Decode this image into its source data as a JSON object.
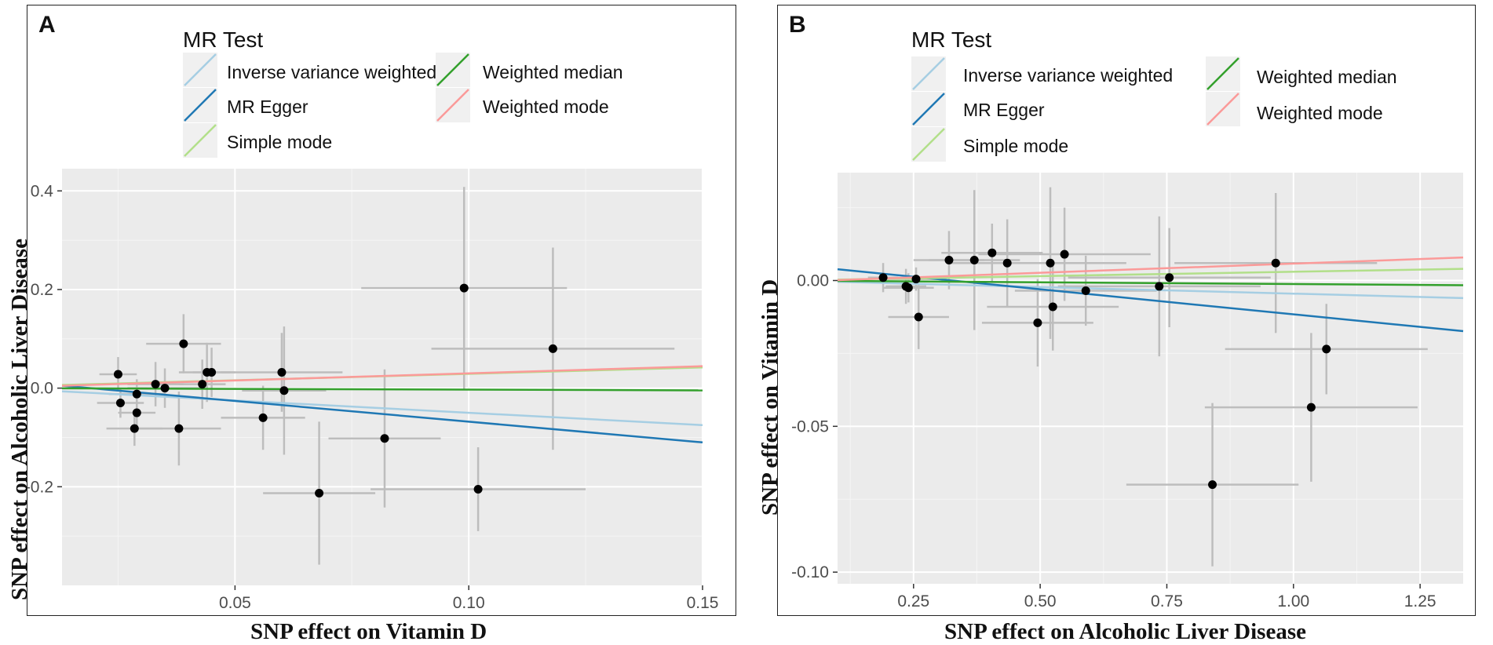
{
  "chart_data": [
    {
      "panel": "A",
      "type": "scatter",
      "xlabel": "SNP effect on Vitamin D",
      "ylabel": "SNP effect on Alcoholic Liver Disease",
      "xlim": [
        0.013,
        0.15
      ],
      "ylim": [
        -0.4,
        0.445
      ],
      "xticks": [
        0.05,
        0.1,
        0.15
      ],
      "xtick_labels": [
        "0.05",
        "0.10",
        "0.15"
      ],
      "yticks": [
        -0.2,
        0.0,
        0.2,
        0.4
      ],
      "ytick_labels": [
        "-0.2",
        "0.0",
        "0.2",
        "0.4"
      ],
      "legend": {
        "title": "MR Test",
        "entries": [
          {
            "label": "Inverse variance weighted",
            "color": "#a6cee3"
          },
          {
            "label": "MR Egger",
            "color": "#1f78b4"
          },
          {
            "label": "Simple mode",
            "color": "#b2df8a"
          },
          {
            "label": "Weighted median",
            "color": "#33a02c"
          },
          {
            "label": "Weighted mode",
            "color": "#fb9a99"
          }
        ]
      },
      "lines": [
        {
          "name": "Inverse variance weighted",
          "slope": -0.5,
          "intercept": 0,
          "color": "#a6cee3"
        },
        {
          "name": "MR Egger",
          "slope": -0.84,
          "intercept": 0.016,
          "color": "#1f78b4"
        },
        {
          "name": "Simple mode",
          "slope": 0.26,
          "intercept": 0.003,
          "color": "#b2df8a"
        },
        {
          "name": "Weighted median",
          "slope": -0.03,
          "intercept": 0,
          "color": "#33a02c"
        },
        {
          "name": "Weighted mode",
          "slope": 0.29,
          "intercept": 0.001,
          "color": "#fb9a99"
        }
      ],
      "points": [
        {
          "x": 0.025,
          "y": 0.028,
          "xerr": 0.004,
          "yerr": 0.035
        },
        {
          "x": 0.0255,
          "y": -0.03,
          "xerr": 0.005,
          "yerr": 0.03
        },
        {
          "x": 0.029,
          "y": -0.012,
          "xerr": 0.006,
          "yerr": 0.03
        },
        {
          "x": 0.029,
          "y": -0.05,
          "xerr": 0.004,
          "yerr": 0.03
        },
        {
          "x": 0.0285,
          "y": -0.082,
          "xerr": 0.006,
          "yerr": 0.035
        },
        {
          "x": 0.033,
          "y": 0.008,
          "xerr": 0.006,
          "yerr": 0.045
        },
        {
          "x": 0.035,
          "y": 0.0,
          "xerr": 0.008,
          "yerr": 0.04
        },
        {
          "x": 0.038,
          "y": -0.082,
          "xerr": 0.009,
          "yerr": 0.075
        },
        {
          "x": 0.039,
          "y": 0.09,
          "xerr": 0.008,
          "yerr": 0.06
        },
        {
          "x": 0.043,
          "y": 0.008,
          "xerr": 0.005,
          "yerr": 0.05
        },
        {
          "x": 0.044,
          "y": 0.032,
          "xerr": 0.006,
          "yerr": 0.06
        },
        {
          "x": 0.045,
          "y": 0.032,
          "xerr": 0.004,
          "yerr": 0.05
        },
        {
          "x": 0.056,
          "y": -0.06,
          "xerr": 0.009,
          "yerr": 0.065
        },
        {
          "x": 0.06,
          "y": 0.032,
          "xerr": 0.013,
          "yerr": 0.08
        },
        {
          "x": 0.0605,
          "y": -0.005,
          "xerr": 0.009,
          "yerr": 0.13
        },
        {
          "x": 0.068,
          "y": -0.213,
          "xerr": 0.012,
          "yerr": 0.145
        },
        {
          "x": 0.082,
          "y": -0.102,
          "xerr": 0.012,
          "yerr": 0.14
        },
        {
          "x": 0.099,
          "y": 0.203,
          "xerr": 0.022,
          "yerr": 0.205
        },
        {
          "x": 0.102,
          "y": -0.205,
          "xerr": 0.023,
          "yerr": 0.085
        },
        {
          "x": 0.118,
          "y": 0.08,
          "xerr": 0.026,
          "yerr": 0.205
        }
      ]
    },
    {
      "panel": "B",
      "type": "scatter",
      "xlabel": "SNP effect on Alcoholic Liver Disease",
      "ylabel": "SNP effect on Vitamin D",
      "xlim": [
        0.1,
        1.335
      ],
      "ylim": [
        -0.104,
        0.037
      ],
      "xticks": [
        0.25,
        0.5,
        0.75,
        1.0,
        1.25
      ],
      "xtick_labels": [
        "0.25",
        "0.50",
        "0.75",
        "1.00",
        "1.25"
      ],
      "yticks": [
        -0.1,
        -0.05,
        0.0
      ],
      "ytick_labels": [
        "-0.10",
        "-0.05",
        "0.00"
      ],
      "legend": {
        "title": "MR Test",
        "entries": [
          {
            "label": "Inverse variance weighted",
            "color": "#a6cee3"
          },
          {
            "label": "MR Egger",
            "color": "#1f78b4"
          },
          {
            "label": "Simple mode",
            "color": "#b2df8a"
          },
          {
            "label": "Weighted median",
            "color": "#33a02c"
          },
          {
            "label": "Weighted mode",
            "color": "#fb9a99"
          }
        ]
      },
      "lines": [
        {
          "name": "Inverse variance weighted",
          "slope": -0.0045,
          "intercept": 0.0,
          "color": "#a6cee3"
        },
        {
          "name": "MR Egger",
          "slope": -0.0172,
          "intercept": 0.0056,
          "color": "#1f78b4"
        },
        {
          "name": "Simple mode",
          "slope": 0.003,
          "intercept": 0.0,
          "color": "#b2df8a"
        },
        {
          "name": "Weighted median",
          "slope": -0.0012,
          "intercept": 0.0,
          "color": "#33a02c"
        },
        {
          "name": "Weighted mode",
          "slope": 0.0063,
          "intercept": -0.0005,
          "color": "#fb9a99"
        }
      ],
      "points": [
        {
          "x": 0.19,
          "y": 0.001,
          "xerr": 0.03,
          "yerr": 0.005
        },
        {
          "x": 0.235,
          "y": -0.002,
          "xerr": 0.04,
          "yerr": 0.006
        },
        {
          "x": 0.24,
          "y": -0.0025,
          "xerr": 0.05,
          "yerr": 0.005
        },
        {
          "x": 0.255,
          "y": 0.0005,
          "xerr": 0.06,
          "yerr": 0.004
        },
        {
          "x": 0.26,
          "y": -0.0125,
          "xerr": 0.06,
          "yerr": 0.011
        },
        {
          "x": 0.32,
          "y": 0.007,
          "xerr": 0.07,
          "yerr": 0.01
        },
        {
          "x": 0.37,
          "y": 0.007,
          "xerr": 0.09,
          "yerr": 0.024
        },
        {
          "x": 0.405,
          "y": 0.0095,
          "xerr": 0.1,
          "yerr": 0.01
        },
        {
          "x": 0.435,
          "y": 0.006,
          "xerr": 0.11,
          "yerr": 0.015
        },
        {
          "x": 0.495,
          "y": -0.0145,
          "xerr": 0.11,
          "yerr": 0.015
        },
        {
          "x": 0.52,
          "y": 0.006,
          "xerr": 0.15,
          "yerr": 0.026
        },
        {
          "x": 0.525,
          "y": -0.009,
          "xerr": 0.13,
          "yerr": 0.015
        },
        {
          "x": 0.548,
          "y": 0.009,
          "xerr": 0.17,
          "yerr": 0.016
        },
        {
          "x": 0.59,
          "y": -0.0035,
          "xerr": 0.14,
          "yerr": 0.012
        },
        {
          "x": 0.735,
          "y": -0.002,
          "xerr": 0.2,
          "yerr": 0.024
        },
        {
          "x": 0.755,
          "y": 0.001,
          "xerr": 0.2,
          "yerr": 0.017
        },
        {
          "x": 0.84,
          "y": -0.07,
          "xerr": 0.17,
          "yerr": 0.028
        },
        {
          "x": 0.965,
          "y": 0.006,
          "xerr": 0.2,
          "yerr": 0.024
        },
        {
          "x": 1.035,
          "y": -0.0435,
          "xerr": 0.21,
          "yerr": 0.0255
        },
        {
          "x": 1.065,
          "y": -0.0235,
          "xerr": 0.2,
          "yerr": 0.0155
        }
      ]
    }
  ]
}
